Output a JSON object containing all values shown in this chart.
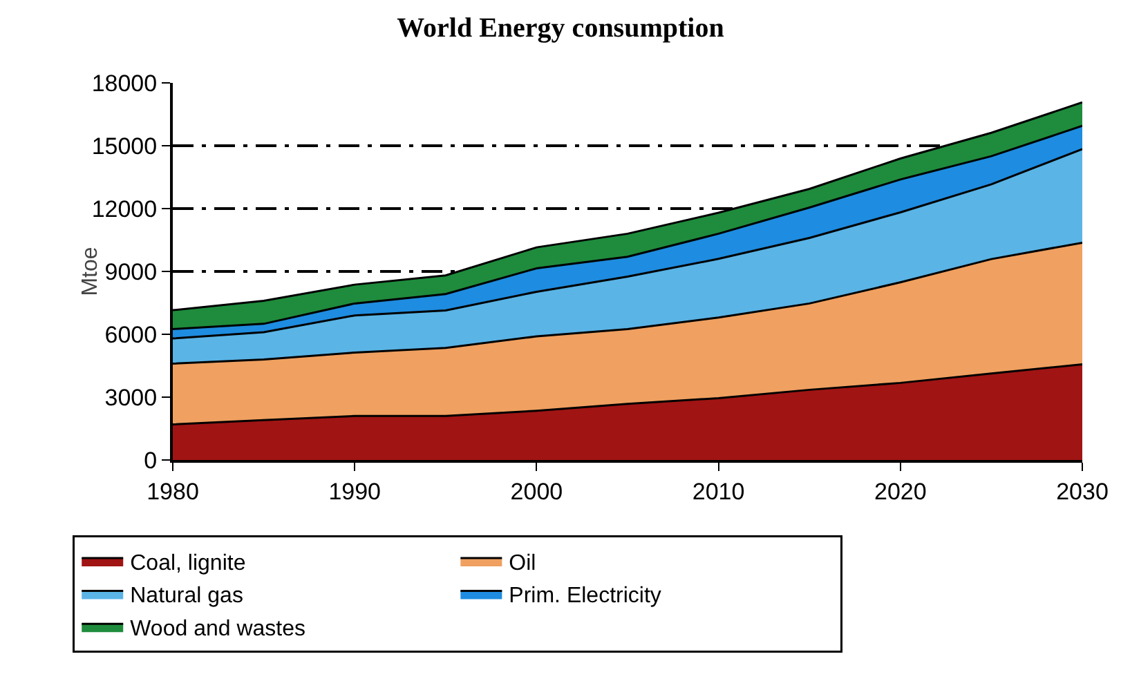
{
  "chart_data": {
    "type": "area",
    "stacked": true,
    "title": "World Energy consumption",
    "ylabel": "Mtoe",
    "x": [
      1980,
      1985,
      1990,
      1995,
      2000,
      2005,
      2010,
      2015,
      2020,
      2025,
      2030
    ],
    "series": [
      {
        "name": "Coal, lignite",
        "color": "#a01414",
        "values": [
          1700,
          1900,
          2100,
          2100,
          2350,
          2680,
          2950,
          3350,
          3680,
          4130,
          4570
        ]
      },
      {
        "name": "Oil",
        "color": "#f0a060",
        "values": [
          2900,
          2900,
          3030,
          3250,
          3550,
          3570,
          3850,
          4120,
          4800,
          5460,
          5800
        ]
      },
      {
        "name": "Natural gas",
        "color": "#5ab4e6",
        "values": [
          1200,
          1300,
          1770,
          1790,
          2130,
          2500,
          2800,
          3130,
          3340,
          3570,
          4470
        ]
      },
      {
        "name": "Prim. Electricity",
        "color": "#1e8ce0",
        "values": [
          450,
          400,
          570,
          780,
          1120,
          950,
          1200,
          1450,
          1570,
          1340,
          1110
        ]
      },
      {
        "name": "Wood and wastes",
        "color": "#1e8c3c",
        "values": [
          900,
          1100,
          900,
          890,
          1000,
          1100,
          1000,
          890,
          1000,
          1120,
          1120
        ]
      }
    ],
    "xlim": [
      1980,
      2030
    ],
    "xticks": [
      1980,
      1990,
      2000,
      2010,
      2020,
      2030
    ],
    "ylim": [
      0,
      18000
    ],
    "yticks": [
      0,
      3000,
      6000,
      9000,
      12000,
      15000,
      18000
    ],
    "grid": "y",
    "legend": "bottom",
    "line_style": "solid"
  }
}
